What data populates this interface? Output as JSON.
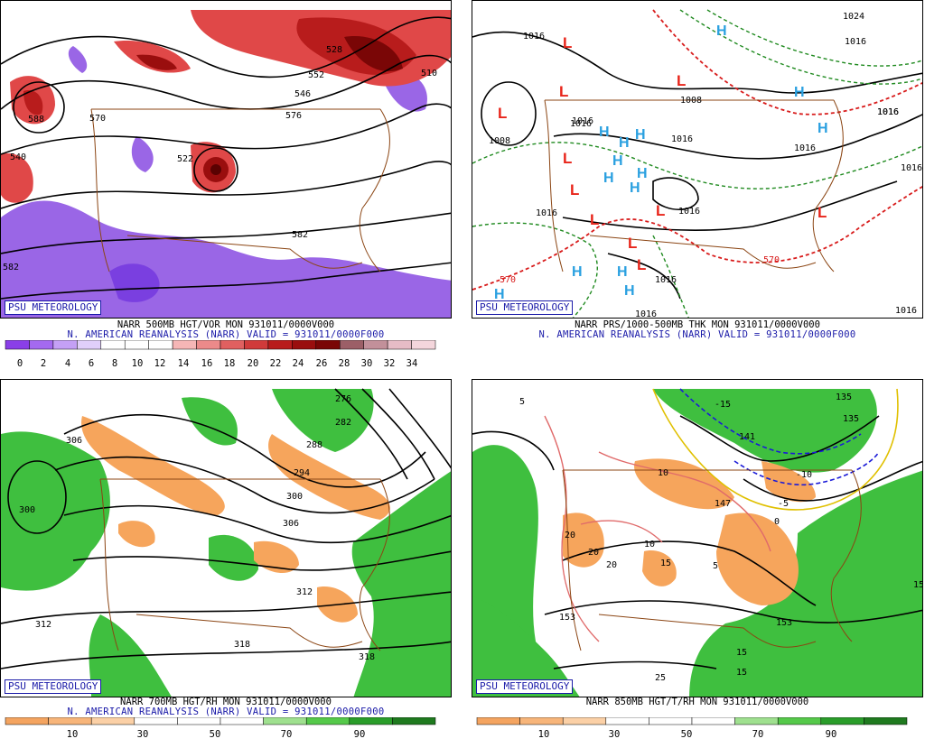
{
  "colors": {
    "vort_bar": [
      "#8a3fe8",
      "#a46af0",
      "#c4a0f5",
      "#e0cffa",
      "#ffffff",
      "#ffffff",
      "#ffffff",
      "#f6b6b6",
      "#ec8a8a",
      "#e06060",
      "#d03a3a",
      "#b81c1c",
      "#9a0e0e",
      "#7a0606",
      "#9c5f67",
      "#c2909a",
      "#e6bcc6",
      "#f4d6dc"
    ],
    "rh_bar": [
      "#f4a460",
      "#f7b57a",
      "#fbd0a6",
      "#ffffff",
      "#ffffff",
      "#ffffff",
      "#9fe08f",
      "#55c94a",
      "#2a9d2a",
      "#1f7a1f"
    ],
    "rh_dry": "#f6a55c",
    "rh_moist": "#3fbf3f",
    "vort_pos": "#e04848",
    "vort_neg": "#9a66e6",
    "border": "#8b4513",
    "low": "#e8241a",
    "high": "#2aa0e0"
  },
  "panels": [
    {
      "id": "vort500",
      "logo": "PSU METEOROLOGY",
      "line1": "NARR 500MB HGT/VOR MON  931011/0000V000",
      "line2": "N. AMERICAN REANALYSIS (NARR)  VALID = 931011/0000F000",
      "contour_labels": [
        "528",
        "552",
        "546",
        "570",
        "576",
        "522",
        "582",
        "588",
        "582",
        "540",
        "510"
      ],
      "colorbar_ticks": [
        "0",
        "2",
        "4",
        "6",
        "8",
        "10",
        "12",
        "14",
        "16",
        "18",
        "20",
        "22",
        "24",
        "26",
        "28",
        "30",
        "32",
        "34"
      ]
    },
    {
      "id": "thk",
      "logo": "PSU METEOROLOGY",
      "line1": "NARR PRS/1000-500MB THK MON  931011/0000V000",
      "line2": "N. AMERICAN REANALYSIS (NARR)  VALID = 931011/0000F000",
      "contour_labels": [
        "1016",
        "1008",
        "1016",
        "1008",
        "1016",
        "1016",
        "1016",
        "1016",
        "1016",
        "1016",
        "1016",
        "1016",
        "1024",
        "1016",
        "570",
        "570",
        "1016",
        "1016",
        "1016"
      ],
      "markers": [
        "L",
        "H"
      ]
    },
    {
      "id": "rh700",
      "logo": "PSU METEOROLOGY",
      "line1": "NARR 700MB HGT/RH MON  931011/0000V000",
      "line2": "N. AMERICAN REANALYSIS (NARR)  VALID = 931011/0000F000",
      "contour_labels": [
        "276",
        "282",
        "306",
        "288",
        "294",
        "300",
        "300",
        "306",
        "312",
        "312",
        "318",
        "318"
      ],
      "colorbar_ticks": [
        "10",
        "30",
        "50",
        "70",
        "90"
      ]
    },
    {
      "id": "rh850",
      "logo": "PSU METEOROLOGY",
      "line1": "NARR 850MB HGT/T/RH MON  931011/0000V000",
      "contour_labels": [
        "5",
        "-15",
        "135",
        "141",
        "135",
        "-10",
        "-5",
        "10",
        "147",
        "0",
        "20",
        "10",
        "20",
        "20",
        "15",
        "5",
        "153",
        "153",
        "25",
        "15",
        "15",
        "15"
      ],
      "colorbar_ticks": [
        "10",
        "30",
        "50",
        "70",
        "90"
      ]
    }
  ]
}
